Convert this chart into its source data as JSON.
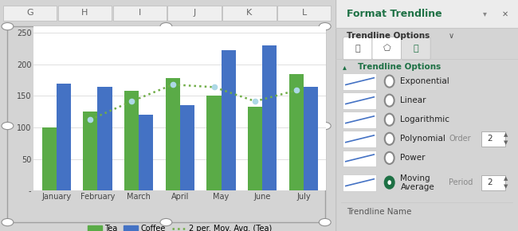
{
  "months": [
    "January",
    "February",
    "March",
    "April",
    "May",
    "June",
    "July"
  ],
  "tea": [
    100,
    125,
    158,
    178,
    150,
    133,
    185
  ],
  "coffee": [
    170,
    165,
    120,
    135,
    222,
    230,
    165
  ],
  "tea_color": "#5aab47",
  "coffee_color": "#4472c4",
  "trendline_color": "#70ad47",
  "ylim": [
    0,
    260
  ],
  "yticks": [
    0,
    50,
    100,
    150,
    200,
    250
  ],
  "bar_width": 0.35,
  "legend_labels": [
    "Tea",
    "Coffee",
    "2 per. Mov. Avg. (Tea)"
  ],
  "chart_bg": "#ffffff",
  "outer_bg": "#d4d4d4",
  "grid_color": "#e0e0e0",
  "excel_header_color": "#efefef",
  "excel_header_text": "#666666",
  "panel_bg": "#f5f5f5",
  "panel_title": "Format Trendline",
  "panel_title_color": "#1e7145",
  "trendline_options": [
    {
      "label": "Exponential",
      "selected": false
    },
    {
      "label": "Linear",
      "selected": false
    },
    {
      "label": "Logarithmic",
      "selected": false
    },
    {
      "label": "Polynomial",
      "selected": false,
      "extra_label": "Order",
      "extra_val": "2"
    },
    {
      "label": "Power",
      "selected": false
    },
    {
      "label": "Moving\nAverage",
      "selected": true,
      "extra_label": "Period",
      "extra_val": "2"
    }
  ]
}
